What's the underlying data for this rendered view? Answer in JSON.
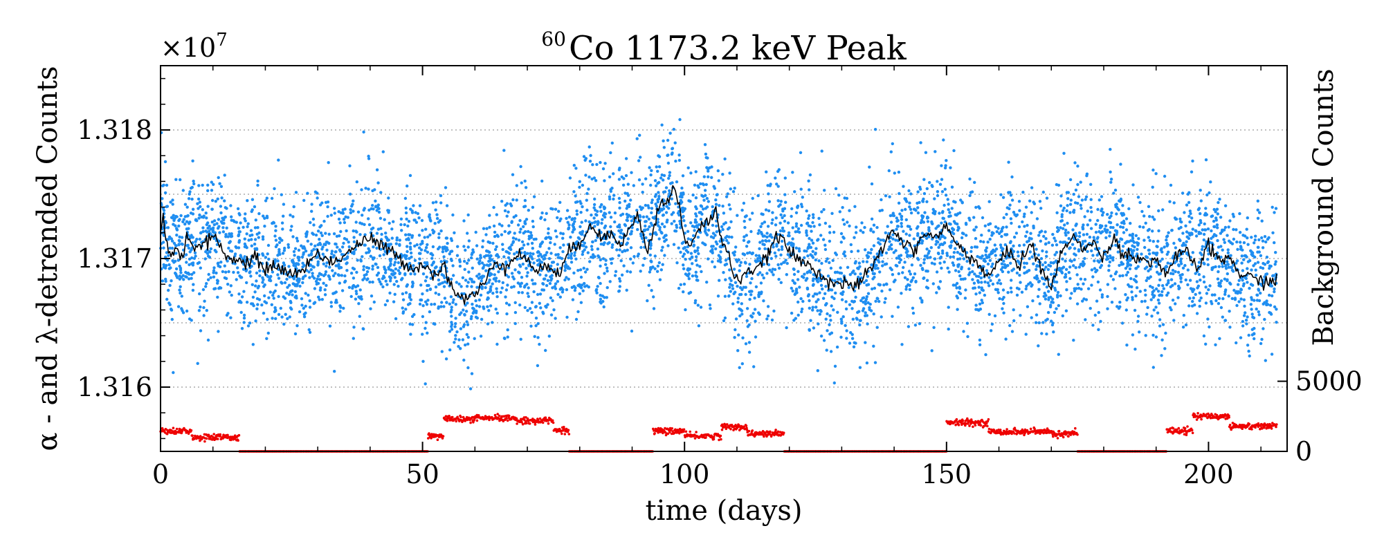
{
  "chart_data": {
    "type": "scatter",
    "title": {
      "isotope_mass": "60",
      "text": "Co 1173.2  keV Peak"
    },
    "xlabel": "time (days)",
    "ylabel_left": "α - and λ-detrended Counts",
    "ylabel_right": "Background Counts",
    "multiplier": {
      "base": "×10",
      "exponent": "7"
    },
    "xlim": [
      0,
      215
    ],
    "ylim_left": [
      13155000,
      13185000
    ],
    "ylim_right": [
      0,
      27500
    ],
    "x_ticks": [
      0,
      50,
      100,
      150,
      200
    ],
    "x_tick_labels": [
      "0",
      "50",
      "100",
      "150",
      "200"
    ],
    "y_left_ticks": [
      13160000,
      13170000,
      13180000
    ],
    "y_left_tick_labels": [
      "1.316",
      "1.317",
      "1.318"
    ],
    "y_right_ticks": [
      0,
      5000
    ],
    "y_right_tick_labels": [
      "0",
      "5000"
    ],
    "grid_y_values": [
      13160000,
      13165000,
      13170000,
      13175000,
      13180000
    ],
    "grid": "horizontal dotted",
    "series": [
      {
        "name": "raw detrended counts",
        "kind": "scatter",
        "axis": "left",
        "color": "#1f8ef1",
        "approx_mean": 13170000,
        "approx_spread": 3000,
        "points_per_day": 24
      },
      {
        "name": "smoothed detrended counts",
        "kind": "line",
        "axis": "left",
        "color": "#000000",
        "x": [
          0,
          0.5,
          1,
          2,
          3,
          4,
          5,
          7,
          9,
          10,
          12,
          14,
          16,
          18,
          20,
          22,
          25,
          28,
          30,
          33,
          35,
          38,
          40,
          43,
          45,
          48,
          50,
          52,
          54,
          56,
          58,
          60,
          62,
          64,
          66,
          68,
          70,
          72,
          74,
          76,
          78,
          80,
          82,
          84,
          86,
          88,
          90,
          91,
          92,
          93,
          94,
          95,
          96,
          97,
          98,
          99,
          100,
          101,
          103,
          105,
          106,
          107,
          108,
          110,
          112,
          114,
          116,
          118,
          119,
          120,
          122,
          124,
          126,
          128,
          130,
          132,
          134,
          136,
          138,
          140,
          142,
          144,
          146,
          148,
          150,
          152,
          154,
          156,
          158,
          160,
          162,
          164,
          166,
          168,
          170,
          172,
          174,
          176,
          178,
          180,
          182,
          184,
          186,
          188,
          190,
          192,
          194,
          196,
          198,
          200,
          202,
          204,
          206,
          208,
          210,
          212,
          213
        ],
        "values": [
          13172000,
          13173500,
          13171500,
          13170200,
          13171000,
          13169800,
          13171800,
          13170800,
          13171200,
          13172000,
          13170500,
          13169800,
          13169700,
          13170000,
          13169200,
          13169500,
          13168700,
          13169400,
          13170500,
          13169600,
          13170300,
          13171200,
          13171500,
          13170800,
          13170200,
          13169200,
          13169600,
          13168800,
          13169400,
          13167500,
          13166800,
          13167200,
          13168200,
          13169800,
          13169400,
          13170500,
          13169800,
          13169000,
          13169500,
          13168700,
          13170500,
          13171200,
          13172800,
          13171500,
          13172000,
          13171300,
          13172500,
          13173500,
          13172000,
          13170500,
          13172200,
          13174000,
          13174200,
          13174800,
          13175500,
          13174000,
          13171500,
          13170800,
          13172500,
          13173000,
          13174000,
          13171300,
          13170700,
          13168200,
          13169100,
          13169000,
          13170500,
          13171800,
          13171400,
          13170500,
          13169800,
          13169400,
          13168800,
          13168200,
          13168000,
          13167800,
          13168300,
          13169500,
          13171000,
          13172200,
          13171200,
          13170500,
          13172100,
          13171600,
          13172500,
          13171000,
          13170400,
          13169600,
          13168500,
          13169800,
          13170500,
          13169500,
          13171300,
          13169200,
          13167800,
          13170400,
          13172000,
          13170600,
          13171200,
          13170200,
          13171500,
          13170400,
          13170100,
          13169800,
          13169900,
          13168800,
          13170200,
          13170400,
          13169200,
          13171000,
          13169800,
          13170100,
          13168800,
          13168500,
          13168300,
          13168200,
          13168200
        ]
      },
      {
        "name": "background counts",
        "kind": "scatter",
        "axis": "right",
        "color": "#ee0000",
        "segments": [
          {
            "from": 0,
            "to": 6,
            "level": 1450
          },
          {
            "from": 6,
            "to": 15,
            "level": 1000
          },
          {
            "from": 15,
            "to": 51,
            "level": 0
          },
          {
            "from": 51,
            "to": 54,
            "level": 1100
          },
          {
            "from": 54,
            "to": 60,
            "level": 2300
          },
          {
            "from": 60,
            "to": 68,
            "level": 2350
          },
          {
            "from": 68,
            "to": 75,
            "level": 2200
          },
          {
            "from": 75,
            "to": 78,
            "level": 1500
          },
          {
            "from": 78,
            "to": 94,
            "level": 0
          },
          {
            "from": 94,
            "to": 100,
            "level": 1450
          },
          {
            "from": 100,
            "to": 107,
            "level": 1100
          },
          {
            "from": 107,
            "to": 112,
            "level": 1750
          },
          {
            "from": 112,
            "to": 119,
            "level": 1250
          },
          {
            "from": 119,
            "to": 150,
            "level": 0
          },
          {
            "from": 150,
            "to": 158,
            "level": 2050
          },
          {
            "from": 158,
            "to": 170,
            "level": 1400
          },
          {
            "from": 170,
            "to": 175,
            "level": 1250
          },
          {
            "from": 175,
            "to": 192,
            "level": 0
          },
          {
            "from": 192,
            "to": 197,
            "level": 1500
          },
          {
            "from": 197,
            "to": 204,
            "level": 2500
          },
          {
            "from": 204,
            "to": 213,
            "level": 1800
          }
        ]
      }
    ]
  }
}
